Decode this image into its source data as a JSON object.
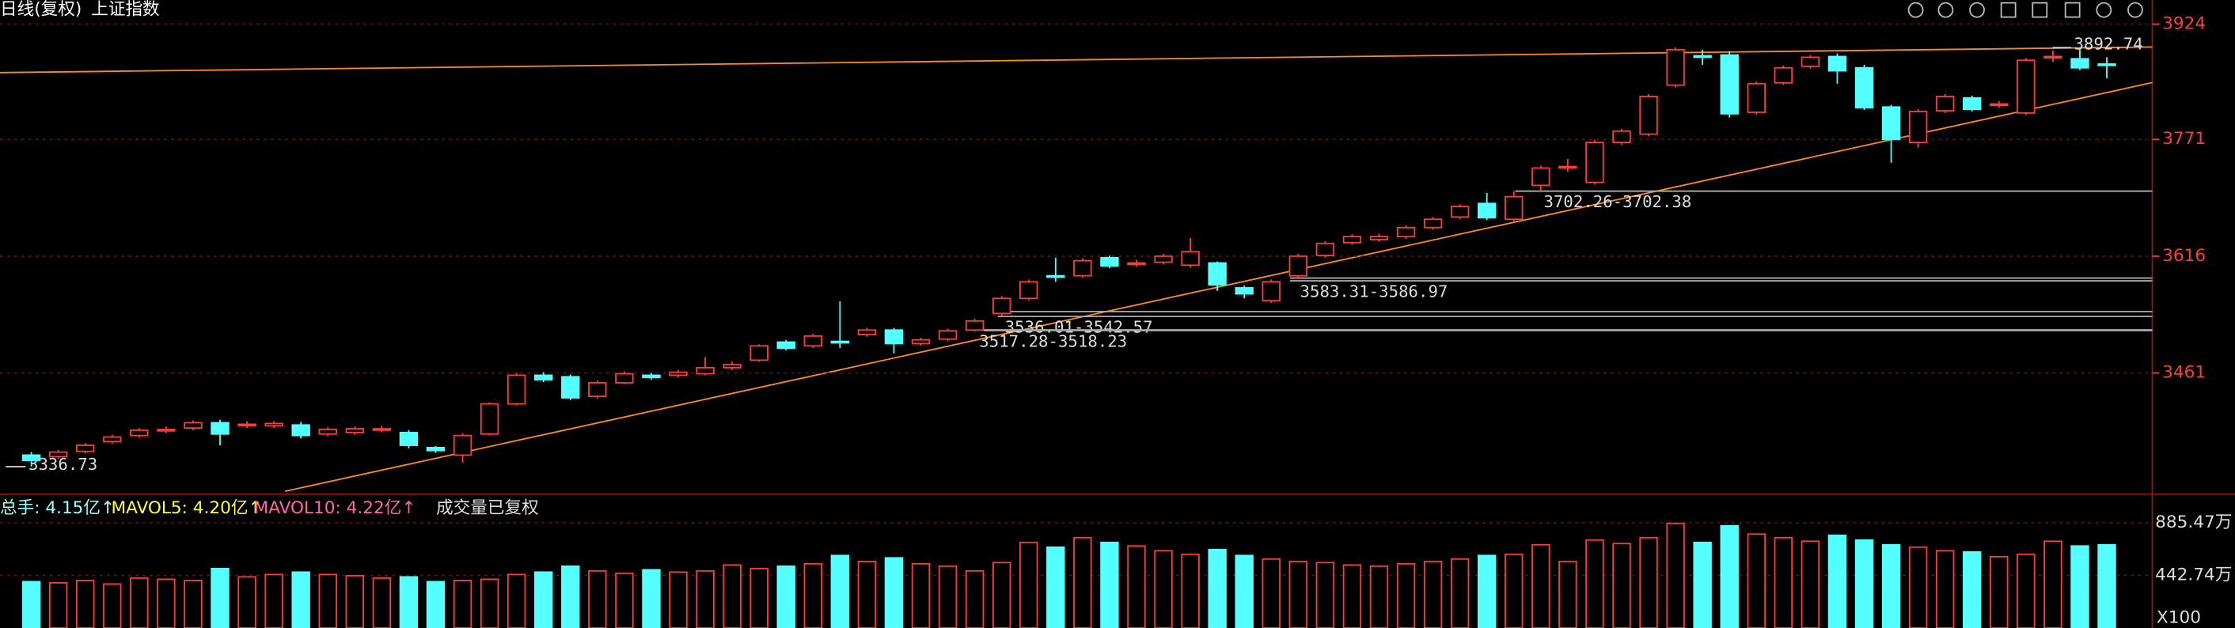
{
  "chart_data": {
    "type": "candlestick",
    "subtitle": "日线(复权)",
    "title": "上证指数",
    "open": [
      3352,
      3350,
      3357,
      3370,
      3378,
      3385,
      3388,
      3395,
      3392,
      3391,
      3392,
      3380,
      3382,
      3386,
      3382,
      3362,
      3352,
      3380,
      3420,
      3458,
      3456,
      3430,
      3448,
      3458,
      3458,
      3460,
      3468,
      3478,
      3502,
      3497,
      3503,
      3512,
      3518,
      3500,
      3506,
      3518,
      3540,
      3560,
      3590,
      3590,
      3614,
      3606,
      3608,
      3604,
      3607,
      3574,
      3557,
      3590,
      3617,
      3634,
      3638,
      3642,
      3654,
      3668,
      3686,
      3665,
      3710,
      3734,
      3714,
      3767,
      3778,
      3843,
      3882,
      3883,
      3807,
      3846,
      3868,
      3881,
      3866,
      3814,
      3767,
      3809,
      3826,
      3817,
      3806,
      3880,
      3878,
      3871
    ],
    "high": [
      3356,
      3359,
      3368,
      3379,
      3388,
      3390,
      3398,
      3399,
      3397,
      3397,
      3396,
      3389,
      3390,
      3391,
      3385,
      3364,
      3381,
      3422,
      3461,
      3462,
      3459,
      3451,
      3463,
      3461,
      3465,
      3482,
      3476,
      3499,
      3505,
      3513,
      3556,
      3521,
      3521,
      3508,
      3520,
      3533,
      3563,
      3585,
      3614,
      3613,
      3617,
      3611,
      3619,
      3640,
      3609,
      3577,
      3585,
      3619,
      3636,
      3645,
      3646,
      3657,
      3668,
      3685,
      3700,
      3702.26,
      3736,
      3745,
      3770,
      3785,
      3831,
      3893,
      3890,
      3888,
      3848,
      3869,
      3883,
      3885,
      3870,
      3817,
      3811,
      3831,
      3829,
      3822,
      3879,
      3889,
      3892.74,
      3880
    ],
    "low": [
      3336.73,
      3347,
      3354,
      3367,
      3375,
      3381,
      3385,
      3365,
      3388,
      3388,
      3374,
      3377,
      3379,
      3382,
      3361,
      3355,
      3342,
      3378,
      3418,
      3449,
      3425,
      3427,
      3446,
      3452,
      3455,
      3458,
      3465,
      3476,
      3491,
      3494,
      3494,
      3509,
      3487,
      3497,
      3503,
      3516,
      3537,
      3557,
      3582,
      3587,
      3600,
      3602,
      3605,
      3601,
      3570,
      3560,
      3554,
      3587,
      3614,
      3631,
      3635,
      3639,
      3651,
      3665,
      3664,
      3662,
      3702.38,
      3728,
      3711,
      3764,
      3775,
      3840,
      3870,
      3800,
      3804,
      3843,
      3865,
      3845,
      3810,
      3740,
      3760,
      3806,
      3808,
      3813,
      3803,
      3874,
      3863,
      3852
    ],
    "close": [
      3345,
      3356,
      3365,
      3376,
      3385,
      3386,
      3395,
      3380,
      3393,
      3394,
      3378,
      3386,
      3387,
      3387,
      3365,
      3358,
      3378,
      3420,
      3458,
      3452,
      3428,
      3448,
      3460,
      3455,
      3462,
      3468,
      3472,
      3497,
      3494,
      3510,
      3501,
      3518,
      3500,
      3505,
      3517,
      3530,
      3560,
      3582,
      3589,
      3610,
      3603,
      3607,
      3616,
      3622,
      3578,
      3566,
      3582,
      3616,
      3633,
      3642,
      3642,
      3654,
      3665,
      3682,
      3667,
      3695,
      3733,
      3735,
      3767,
      3782,
      3828,
      3890,
      3880,
      3805,
      3845,
      3866,
      3880,
      3862,
      3813,
      3771,
      3808,
      3828,
      3811,
      3818,
      3876,
      3881,
      3866,
      3870
    ],
    "ylim": [
      3304,
      3956
    ],
    "yticks": [
      3461,
      3616,
      3771,
      3924
    ],
    "grid": true,
    "annotations": [
      {
        "label": "3702.26-3702.38",
        "low": 3702.26,
        "high": 3702.38
      },
      {
        "label": "3583.31-3586.97",
        "low": 3583.31,
        "high": 3586.97
      },
      {
        "label": "3536.01-3542.57",
        "low": 3536.01,
        "high": 3542.57
      },
      {
        "label": "3517.28-3518.23",
        "low": 3517.28,
        "high": 3518.23
      },
      {
        "label": "3892.74",
        "value": 3892.74
      },
      {
        "label": "3336.73",
        "value": 3336.73
      }
    ],
    "volume": {
      "legend": [
        "总手: 4.15亿↑",
        "MAVOL5: 4.20亿↑",
        "MAVOL10: 4.22亿↑",
        "成交量已复权"
      ],
      "values": [
        390,
        380,
        400,
        370,
        420,
        410,
        400,
        500,
        430,
        450,
        470,
        450,
        440,
        420,
        430,
        390,
        400,
        410,
        450,
        470,
        520,
        480,
        460,
        490,
        470,
        480,
        530,
        500,
        520,
        540,
        610,
        560,
        590,
        540,
        520,
        480,
        550,
        720,
        680,
        760,
        720,
        690,
        650,
        620,
        660,
        610,
        580,
        560,
        550,
        530,
        520,
        540,
        560,
        580,
        610,
        620,
        700,
        560,
        740,
        710,
        760,
        880,
        720,
        860,
        790,
        760,
        730,
        780,
        740,
        700,
        680,
        650,
        640,
        600,
        620,
        730,
        690,
        700
      ],
      "ylim": [
        0,
        1090
      ],
      "yticks": [
        {
          "value": 442.74,
          "label": "442.74万"
        },
        {
          "value": 885.47,
          "label": "885.47万"
        }
      ],
      "unit": "X100"
    }
  }
}
